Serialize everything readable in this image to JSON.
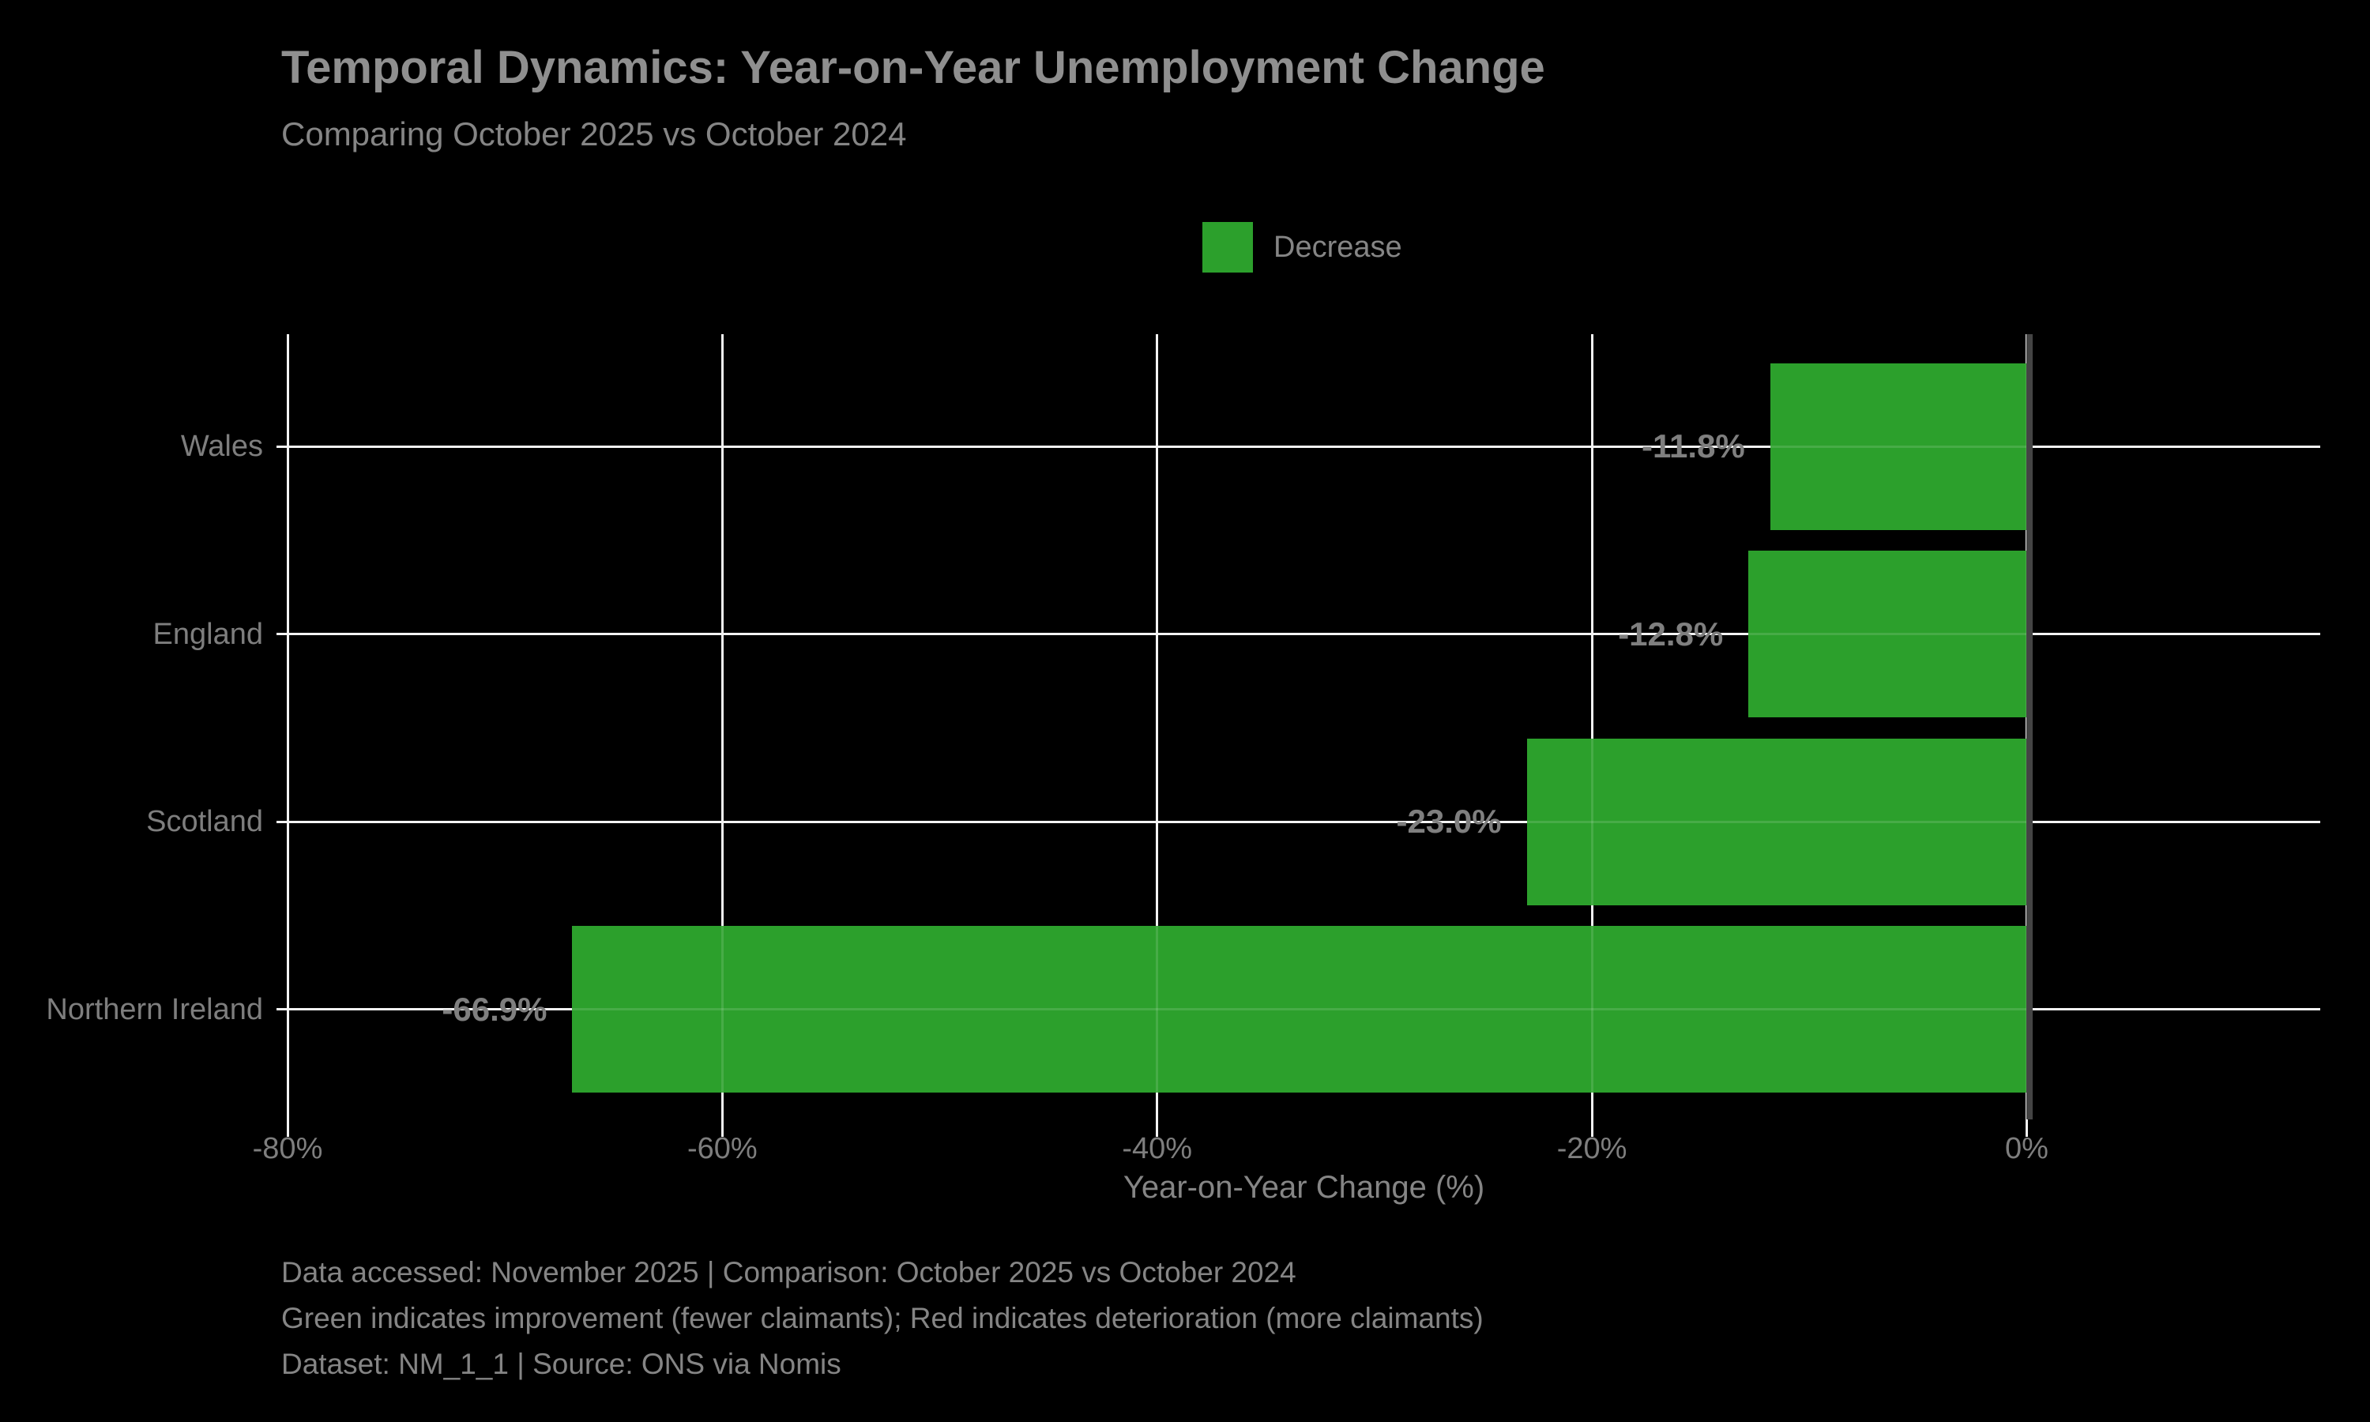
{
  "title": "Temporal Dynamics: Year-on-Year Unemployment Change",
  "subtitle": "Comparing October 2025 vs October 2024",
  "legend": {
    "items": [
      {
        "label": "Decrease",
        "color": "#2ca02c"
      }
    ]
  },
  "chart_data": {
    "type": "bar",
    "orientation": "horizontal",
    "title": "Temporal Dynamics: Year-on-Year Unemployment Change",
    "subtitle": "Comparing October 2025 vs October 2024",
    "categories": [
      "Wales",
      "England",
      "Scotland",
      "Northern Ireland"
    ],
    "values": [
      -11.8,
      -12.8,
      -23.0,
      -66.9
    ],
    "value_labels": [
      "-11.8%",
      "-12.8%",
      "-23.0%",
      "-66.9%"
    ],
    "bar_color": "#2ca02c",
    "xlabel": "Year-on-Year Change (%)",
    "ylabel": "",
    "xlim": [
      -80,
      13.5
    ],
    "x_ticks": [
      {
        "value": -80,
        "label": "-80%"
      },
      {
        "value": -60,
        "label": "-60%"
      },
      {
        "value": -40,
        "label": "-40%"
      },
      {
        "value": -20,
        "label": "-20%"
      },
      {
        "value": 0,
        "label": "0%"
      }
    ],
    "grid": true,
    "zero_line": true,
    "legend_position": "upper center",
    "legend_entries": [
      "Decrease"
    ]
  },
  "footer": {
    "lines": [
      "Data accessed: November 2025 | Comparison: October 2025 vs October 2024",
      "Green indicates improvement (fewer claimants); Red indicates deterioration (more claimants)",
      "Dataset: NM_1_1 | Source: ONS via Nomis"
    ]
  },
  "colors": {
    "background": "#000000",
    "bar_green": "#2ca02c",
    "grid": "#f2f2f2",
    "zero_line": "#444444",
    "title_text": "#8f8f8f",
    "text": "#858585",
    "tick_text": "#7e7e7e",
    "value_text": "#7f7f7f"
  }
}
